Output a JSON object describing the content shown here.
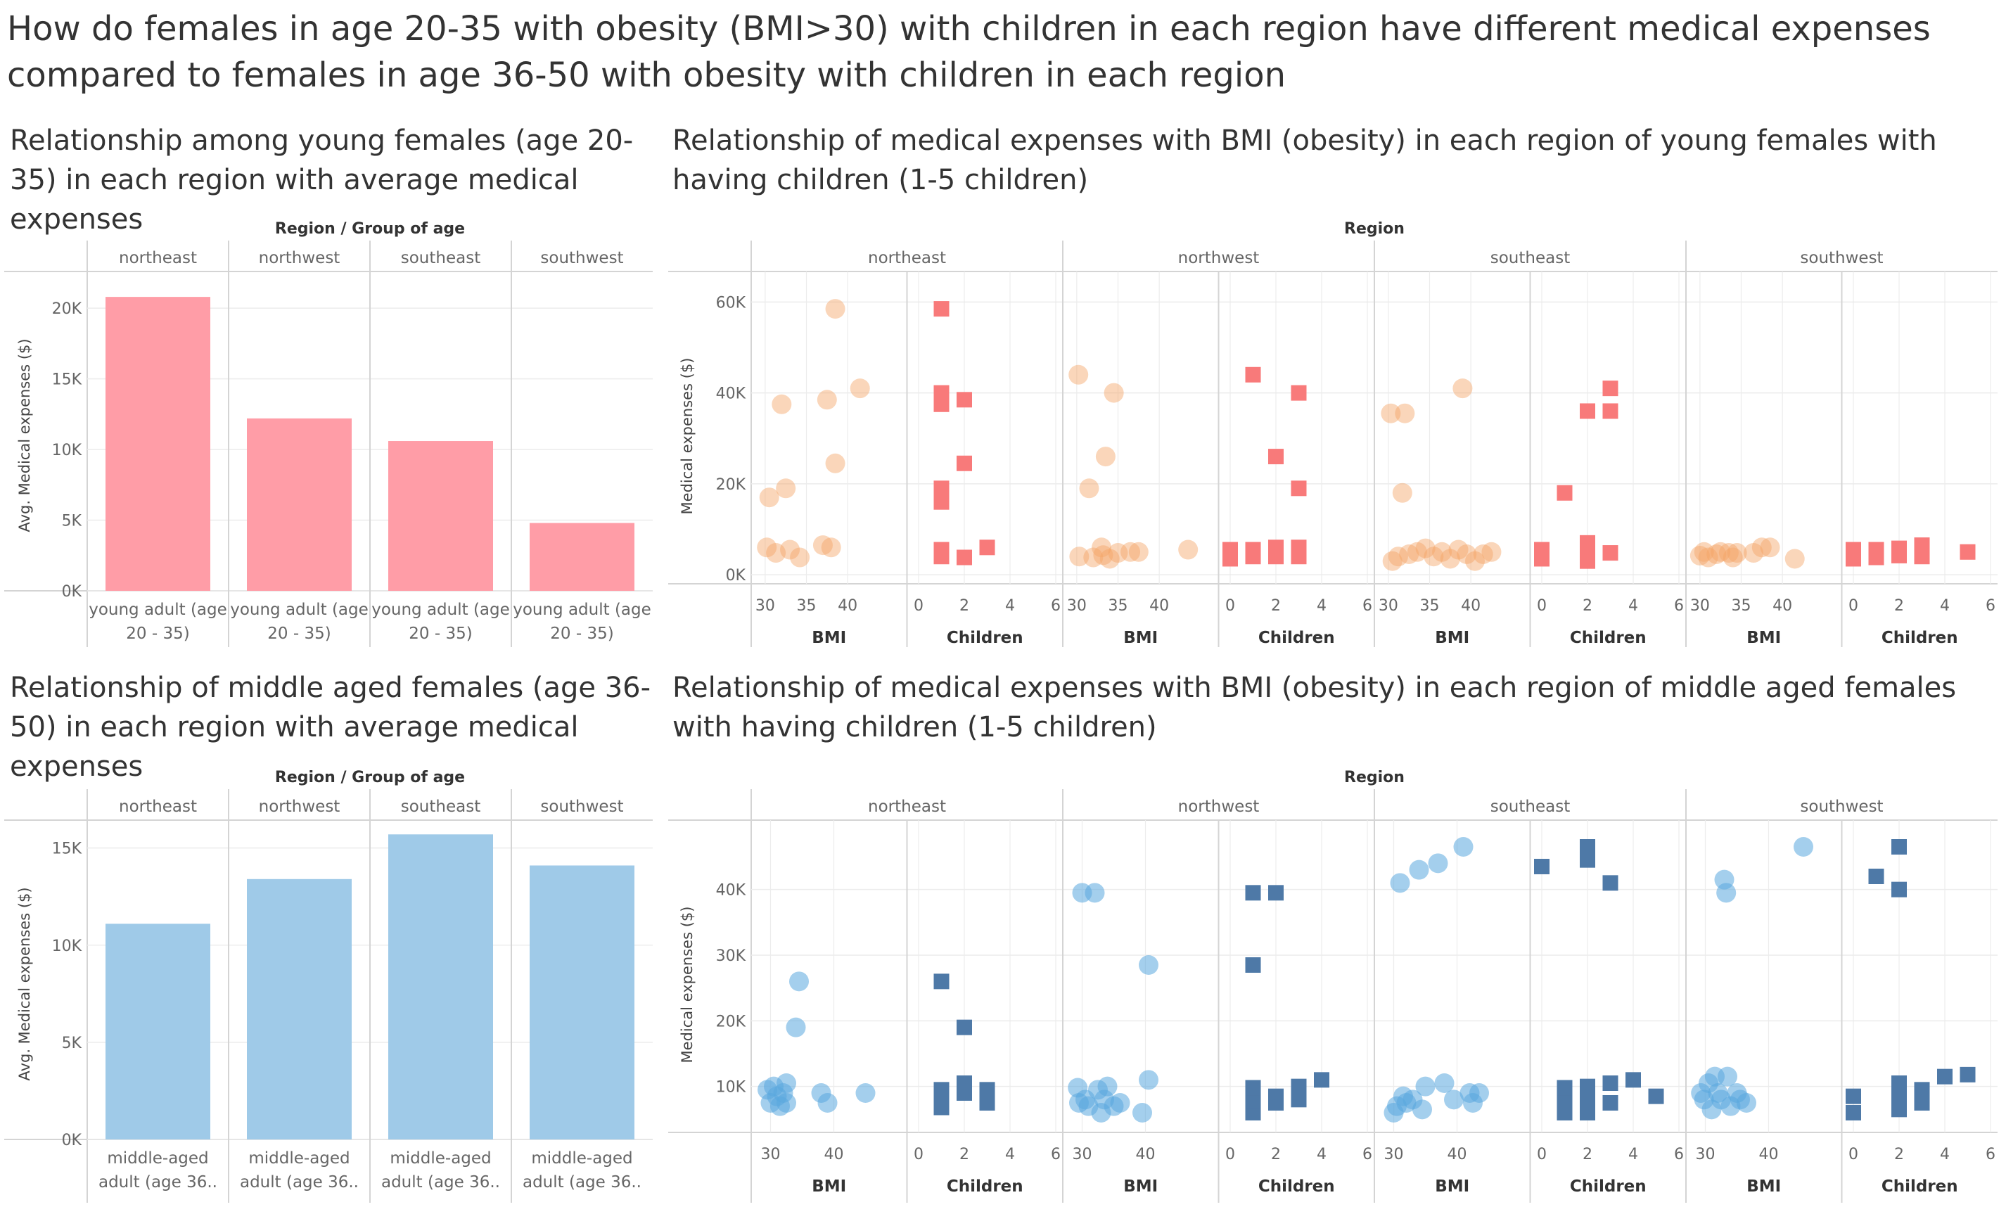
{
  "dashboard": {
    "title": "How do females in age 20-35 with obesity (BMI>30) with children in each region have different medical expenses compared to females in age 36-50 with obesity with children in each region"
  },
  "sheets": {
    "young_bar_title": "Relationship among young females (age 20-35) in each region with average medical expenses",
    "young_scatter_title": "Relationship of medical expenses with BMI (obesity) in each region of young females with having children (1-5 children)",
    "middle_bar_title": "Relationship of middle aged females (age 36-50) in each region with average medical expenses",
    "middle_scatter_title": "Relationship of medical expenses with BMI (obesity) in each region of middle aged females with having children (1-5 children)"
  },
  "colors": {
    "young_bar": "#ff9da7",
    "young_circle": "#f5a467",
    "young_square": "#f87a7a",
    "middle_bar": "#9fcae8",
    "middle_circle": "#5aa7df",
    "middle_square": "#4e79a7",
    "grid": "#ececec",
    "divider": "#d4d4d4",
    "text": "#666666"
  },
  "chart_data": [
    {
      "id": "young_bar",
      "type": "bar",
      "header": "Region / Group of age",
      "regions": [
        "northeast",
        "northwest",
        "southeast",
        "southwest"
      ],
      "categories": [
        "young adult (age 20 - 35)",
        "young adult (age 20 - 35)",
        "young adult (age 20 - 35)",
        "young adult (age 20 - 35)"
      ],
      "category_lines": [
        "young adult (age",
        "20 - 35)"
      ],
      "values": [
        20800,
        12200,
        10600,
        4800
      ],
      "ylabel": "Avg. Medical expenses ($)",
      "ylim": [
        0,
        22000
      ],
      "yticks": [
        0,
        5000,
        10000,
        15000,
        20000
      ],
      "ytick_labels": [
        "0K",
        "5K",
        "10K",
        "15K",
        "20K"
      ],
      "color": "#ff9da7"
    },
    {
      "id": "middle_bar",
      "type": "bar",
      "header": "Region / Group of age",
      "regions": [
        "northeast",
        "northwest",
        "southeast",
        "southwest"
      ],
      "categories": [
        "middle-aged adult (age 36..",
        "middle-aged adult (age 36..",
        "middle-aged adult (age 36..",
        "middle-aged adult (age 36.."
      ],
      "category_lines": [
        "middle-aged",
        "adult (age 36.."
      ],
      "values": [
        11100,
        13400,
        15700,
        14100
      ],
      "ylabel": "Avg. Medical expenses ($)",
      "ylim": [
        0,
        16000
      ],
      "yticks": [
        0,
        5000,
        10000,
        15000
      ],
      "ytick_labels": [
        "0K",
        "5K",
        "10K",
        "15K"
      ],
      "color": "#9fcae8"
    },
    {
      "id": "young_scatter",
      "type": "scatter",
      "header": "Region",
      "ylabel": "Medical expenses ($)",
      "ylim": [
        -2000,
        63000
      ],
      "yticks": [
        0,
        20000,
        40000,
        60000
      ],
      "ytick_labels": [
        "0K",
        "20K",
        "40K",
        "60K"
      ],
      "bmi_xlim": [
        29.5,
        46
      ],
      "bmi_ticks": [
        30,
        35,
        40
      ],
      "children_xlim": [
        -0.2,
        6
      ],
      "children_ticks": [
        0,
        2,
        4,
        6
      ],
      "xlabel_bmi": "BMI",
      "xlabel_children": "Children",
      "regions": [
        {
          "name": "northeast",
          "bmi": [
            [
              30.2,
              6000
            ],
            [
              30.5,
              17000
            ],
            [
              31.3,
              4800
            ],
            [
              32.0,
              37500
            ],
            [
              32.5,
              19000
            ],
            [
              33.0,
              5500
            ],
            [
              34.2,
              3800
            ],
            [
              37.0,
              6500
            ],
            [
              37.5,
              38500
            ],
            [
              38.0,
              6000
            ],
            [
              38.5,
              24500
            ],
            [
              38.5,
              58500
            ],
            [
              41.5,
              41000
            ]
          ],
          "children": [
            [
              1,
              4000
            ],
            [
              1,
              5500
            ],
            [
              1,
              16000
            ],
            [
              1,
              19000
            ],
            [
              1,
              37500
            ],
            [
              1,
              40000
            ],
            [
              1,
              58500
            ],
            [
              2,
              3800
            ],
            [
              2,
              24500
            ],
            [
              2,
              38500
            ],
            [
              3,
              6000
            ]
          ]
        },
        {
          "name": "northwest",
          "bmi": [
            [
              30.2,
              44000
            ],
            [
              30.3,
              4000
            ],
            [
              31.5,
              19000
            ],
            [
              32.0,
              3800
            ],
            [
              33.0,
              6000
            ],
            [
              33.2,
              4300
            ],
            [
              33.5,
              26000
            ],
            [
              34.0,
              3500
            ],
            [
              34.5,
              40000
            ],
            [
              35.0,
              4800
            ],
            [
              36.5,
              5000
            ],
            [
              37.5,
              5000
            ],
            [
              43.5,
              5500
            ]
          ],
          "children": [
            [
              0,
              3500
            ],
            [
              0,
              5500
            ],
            [
              1,
              4000
            ],
            [
              1,
              5500
            ],
            [
              1,
              44000
            ],
            [
              2,
              4000
            ],
            [
              2,
              6000
            ],
            [
              2,
              26000
            ],
            [
              3,
              4000
            ],
            [
              3,
              6000
            ],
            [
              3,
              19000
            ],
            [
              3,
              40000
            ]
          ]
        },
        {
          "name": "southeast",
          "bmi": [
            [
              30.3,
              35500
            ],
            [
              30.5,
              3000
            ],
            [
              31.2,
              4000
            ],
            [
              31.7,
              18000
            ],
            [
              32.0,
              35500
            ],
            [
              32.5,
              4500
            ],
            [
              33.5,
              5000
            ],
            [
              34.5,
              5800
            ],
            [
              35.5,
              4000
            ],
            [
              36.5,
              5000
            ],
            [
              37.5,
              3500
            ],
            [
              38.5,
              5500
            ],
            [
              39.0,
              41000
            ],
            [
              39.5,
              4500
            ],
            [
              40.5,
              3000
            ],
            [
              41.5,
              4500
            ],
            [
              42.5,
              5000
            ]
          ],
          "children": [
            [
              0,
              3500
            ],
            [
              0,
              5500
            ],
            [
              1,
              18000
            ],
            [
              2,
              3000
            ],
            [
              2,
              5000
            ],
            [
              2,
              7000
            ],
            [
              2,
              36000
            ],
            [
              3,
              4800
            ],
            [
              3,
              36000
            ],
            [
              3,
              41000
            ]
          ]
        },
        {
          "name": "southwest",
          "bmi": [
            [
              30.0,
              4200
            ],
            [
              30.5,
              5000
            ],
            [
              31.0,
              3800
            ],
            [
              32.0,
              4500
            ],
            [
              32.5,
              5000
            ],
            [
              33.5,
              4800
            ],
            [
              34.0,
              3800
            ],
            [
              34.5,
              4800
            ],
            [
              36.5,
              4800
            ],
            [
              37.5,
              6000
            ],
            [
              38.5,
              6000
            ],
            [
              41.5,
              3500
            ]
          ],
          "children": [
            [
              0,
              3500
            ],
            [
              0,
              5500
            ],
            [
              1,
              3800
            ],
            [
              1,
              5500
            ],
            [
              2,
              4200
            ],
            [
              2,
              5800
            ],
            [
              3,
              4000
            ],
            [
              3,
              6500
            ],
            [
              5,
              5000
            ]
          ]
        }
      ]
    },
    {
      "id": "middle_scatter",
      "type": "scatter",
      "header": "Region",
      "ylabel": "Medical expenses ($)",
      "ylim": [
        3000,
        48000
      ],
      "yticks": [
        10000,
        20000,
        30000,
        40000
      ],
      "ytick_labels": [
        "10K",
        "20K",
        "30K",
        "40K"
      ],
      "bmi_xlim": [
        28.5,
        50
      ],
      "bmi_ticks": [
        30,
        40
      ],
      "children_xlim": [
        -0.2,
        6
      ],
      "children_ticks": [
        0,
        2,
        4,
        6
      ],
      "xlabel_bmi": "BMI",
      "xlabel_children": "Children",
      "regions": [
        {
          "name": "northeast",
          "bmi": [
            [
              29.5,
              9500
            ],
            [
              30.0,
              7500
            ],
            [
              30.5,
              10000
            ],
            [
              31.0,
              8500
            ],
            [
              31.5,
              7000
            ],
            [
              32.0,
              9000
            ],
            [
              32.5,
              10500
            ],
            [
              32.5,
              7500
            ],
            [
              34.0,
              19000
            ],
            [
              34.5,
              26000
            ],
            [
              38.0,
              9000
            ],
            [
              39.0,
              7500
            ],
            [
              45.0,
              9000
            ]
          ],
          "children": [
            [
              1,
              6800
            ],
            [
              1,
              8000
            ],
            [
              1,
              9500
            ],
            [
              1,
              26000
            ],
            [
              2,
              9000
            ],
            [
              2,
              10500
            ],
            [
              2,
              19000
            ],
            [
              3,
              7500
            ],
            [
              3,
              9500
            ]
          ]
        },
        {
          "name": "northwest",
          "bmi": [
            [
              29.3,
              9800
            ],
            [
              29.5,
              7500
            ],
            [
              30.0,
              39500
            ],
            [
              30.5,
              8000
            ],
            [
              31.0,
              7000
            ],
            [
              32.0,
              39500
            ],
            [
              32.5,
              9500
            ],
            [
              33.0,
              6000
            ],
            [
              33.5,
              8000
            ],
            [
              34.0,
              10000
            ],
            [
              35.0,
              7000
            ],
            [
              36.0,
              7500
            ],
            [
              39.5,
              6000
            ],
            [
              40.5,
              28500
            ],
            [
              40.5,
              11000
            ]
          ],
          "children": [
            [
              1,
              6000
            ],
            [
              1,
              7800
            ],
            [
              1,
              9800
            ],
            [
              1,
              28500
            ],
            [
              1,
              39500
            ],
            [
              2,
              7500
            ],
            [
              2,
              8500
            ],
            [
              2,
              39500
            ],
            [
              3,
              8000
            ],
            [
              3,
              10000
            ],
            [
              4,
              11000
            ]
          ]
        },
        {
          "name": "southeast",
          "bmi": [
            [
              30.0,
              6000
            ],
            [
              30.5,
              7000
            ],
            [
              31.0,
              41000
            ],
            [
              31.5,
              8500
            ],
            [
              32.0,
              7500
            ],
            [
              33.0,
              8000
            ],
            [
              34.0,
              43000
            ],
            [
              34.5,
              6500
            ],
            [
              35.0,
              10000
            ],
            [
              37.0,
              44000
            ],
            [
              38.0,
              10500
            ],
            [
              39.5,
              8000
            ],
            [
              41.0,
              46500
            ],
            [
              42.0,
              9000
            ],
            [
              42.5,
              7500
            ],
            [
              43.5,
              9000
            ]
          ],
          "children": [
            [
              0,
              43500
            ],
            [
              1,
              6000
            ],
            [
              1,
              8000
            ],
            [
              1,
              9800
            ],
            [
              2,
              6000
            ],
            [
              2,
              8000
            ],
            [
              2,
              10000
            ],
            [
              2,
              44500
            ],
            [
              2,
              46500
            ],
            [
              3,
              7500
            ],
            [
              3,
              10500
            ],
            [
              3,
              41000
            ],
            [
              4,
              11000
            ],
            [
              5,
              8500
            ]
          ]
        },
        {
          "name": "southwest",
          "bmi": [
            [
              29.3,
              9000
            ],
            [
              29.8,
              8000
            ],
            [
              30.5,
              10500
            ],
            [
              31.0,
              6500
            ],
            [
              31.5,
              11500
            ],
            [
              32.0,
              9000
            ],
            [
              32.5,
              8000
            ],
            [
              33.0,
              41500
            ],
            [
              33.3,
              39500
            ],
            [
              33.5,
              11500
            ],
            [
              34.0,
              7000
            ],
            [
              35.0,
              9000
            ],
            [
              35.5,
              8000
            ],
            [
              36.5,
              7500
            ],
            [
              45.5,
              46500
            ]
          ],
          "children": [
            [
              0,
              6000
            ],
            [
              0,
              8500
            ],
            [
              1,
              42000
            ],
            [
              2,
              6500
            ],
            [
              2,
              8500
            ],
            [
              2,
              10500
            ],
            [
              2,
              40000
            ],
            [
              2,
              46500
            ],
            [
              3,
              7500
            ],
            [
              3,
              9500
            ],
            [
              4,
              11500
            ],
            [
              5,
              11800
            ]
          ]
        }
      ]
    }
  ]
}
